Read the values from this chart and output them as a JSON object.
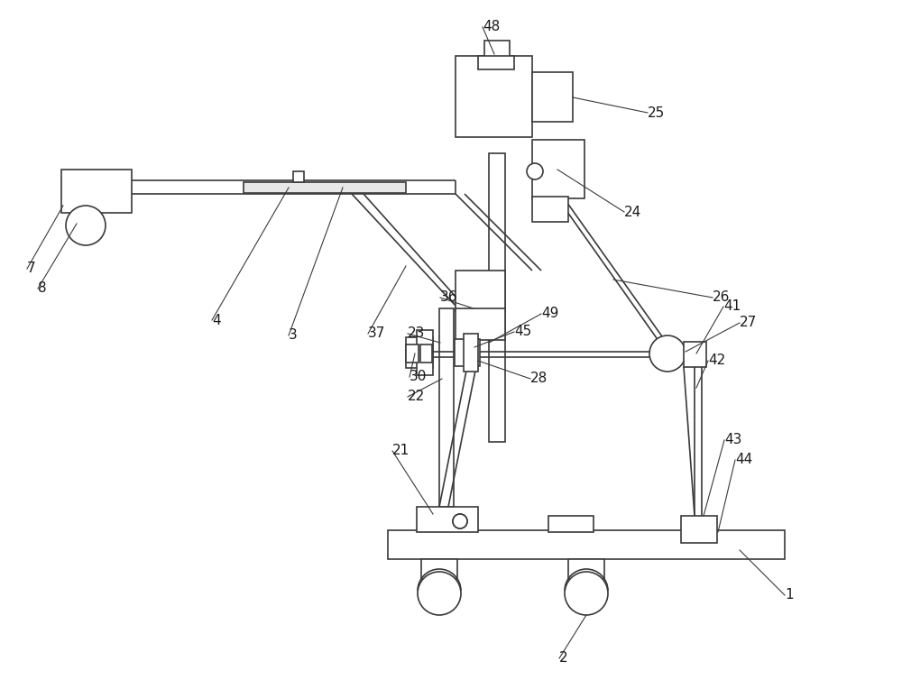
{
  "bg_color": "#ffffff",
  "line_color": "#3a3a3a",
  "label_color": "#1a1a1a",
  "lw": 1.2,
  "fig_width": 10.0,
  "fig_height": 7.74
}
